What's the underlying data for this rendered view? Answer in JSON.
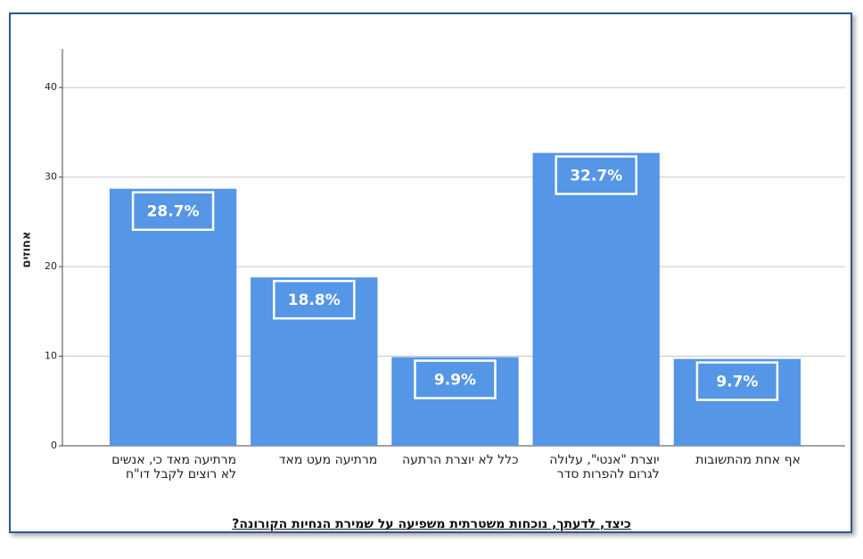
{
  "chart_data": {
    "type": "bar",
    "x_label": "כיצד, לדעתך, נוכחות משטרתית משפיעה על שמירת הנחיות הקורונה?",
    "y_label": "אחוזים",
    "categories": [
      "מרתיעה מאד כי, אנשים לא רוצים לקבל דו\"ח",
      "מרתיעה מעט מאד",
      "כלל לא יוצרת הרתעה",
      "יוצרת \"אנטי\", עלולה לגרום להפרות סדר",
      "אף אחת מהתשובות"
    ],
    "values": [
      28.7,
      18.8,
      9.9,
      32.7,
      9.7
    ],
    "value_labels": [
      "28.7%",
      "18.8%",
      "9.9%",
      "32.7%",
      "9.7%"
    ],
    "color": "#5596e6",
    "ylim": [
      0,
      44.3
    ],
    "yticks": [
      0,
      10,
      20,
      30,
      40
    ],
    "grid": true
  }
}
